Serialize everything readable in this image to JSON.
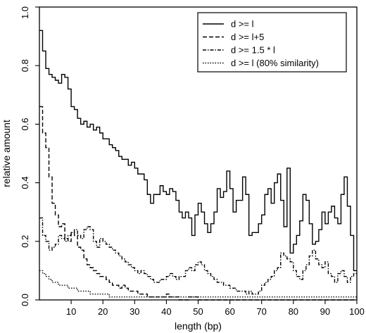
{
  "chart_data": {
    "type": "line",
    "step": true,
    "title": "",
    "xlabel": "length (bp)",
    "ylabel": "relative amount",
    "xlim": [
      0,
      100
    ],
    "ylim": [
      0,
      1.0
    ],
    "xticks": [
      10,
      20,
      30,
      40,
      50,
      60,
      70,
      80,
      90,
      100
    ],
    "yticks": [
      0.0,
      0.2,
      0.4,
      0.6,
      0.8,
      1.0
    ],
    "xtick_labels": [
      "10",
      "20",
      "30",
      "40",
      "50",
      "60",
      "70",
      "80",
      "90",
      "100"
    ],
    "ytick_labels": [
      "0.0",
      "0.2",
      "0.4",
      "0.6",
      "0.8",
      "1.0"
    ],
    "legend_position": "top-right",
    "series": [
      {
        "name": "d >= l",
        "dash": "solid",
        "x": [
          1,
          2,
          3,
          4,
          5,
          6,
          7,
          8,
          9,
          10,
          11,
          12,
          13,
          14,
          15,
          16,
          17,
          18,
          19,
          20,
          21,
          22,
          23,
          24,
          25,
          26,
          27,
          28,
          29,
          30,
          31,
          32,
          33,
          34,
          35,
          36,
          37,
          38,
          39,
          40,
          41,
          42,
          43,
          44,
          45,
          46,
          47,
          48,
          49,
          50,
          51,
          52,
          53,
          54,
          55,
          56,
          57,
          58,
          59,
          60,
          61,
          62,
          63,
          64,
          65,
          66,
          67,
          68,
          69,
          70,
          71,
          72,
          73,
          74,
          75,
          76,
          77,
          78,
          79,
          80,
          81,
          82,
          83,
          84,
          85,
          86,
          87,
          88,
          89,
          90,
          91,
          92,
          93,
          94,
          95,
          96,
          97,
          98,
          99,
          100
        ],
        "y": [
          0.92,
          0.85,
          0.79,
          0.77,
          0.76,
          0.75,
          0.74,
          0.77,
          0.76,
          0.72,
          0.66,
          0.65,
          0.62,
          0.6,
          0.61,
          0.59,
          0.6,
          0.58,
          0.59,
          0.57,
          0.55,
          0.55,
          0.53,
          0.52,
          0.51,
          0.49,
          0.48,
          0.48,
          0.46,
          0.47,
          0.45,
          0.43,
          0.43,
          0.41,
          0.36,
          0.33,
          0.36,
          0.36,
          0.39,
          0.37,
          0.36,
          0.38,
          0.37,
          0.34,
          0.3,
          0.28,
          0.3,
          0.28,
          0.22,
          0.29,
          0.33,
          0.3,
          0.26,
          0.23,
          0.26,
          0.3,
          0.38,
          0.35,
          0.37,
          0.44,
          0.38,
          0.3,
          0.34,
          0.34,
          0.42,
          0.36,
          0.22,
          0.23,
          0.23,
          0.26,
          0.29,
          0.36,
          0.38,
          0.33,
          0.4,
          0.43,
          0.34,
          0.25,
          0.45,
          0.16,
          0.19,
          0.22,
          0.27,
          0.36,
          0.34,
          0.26,
          0.19,
          0.2,
          0.24,
          0.3,
          0.26,
          0.3,
          0.32,
          0.28,
          0.26,
          0.36,
          0.42,
          0.32,
          0.22,
          0.1
        ]
      },
      {
        "name": "d >= l+5",
        "dash": "dashed",
        "x": [
          1,
          2,
          3,
          4,
          5,
          6,
          7,
          8,
          9,
          10,
          11,
          12,
          13,
          14,
          15,
          16,
          17,
          18,
          19,
          20,
          21,
          22,
          23,
          24,
          25,
          26,
          27,
          28,
          29,
          30,
          31,
          32,
          33,
          34,
          35,
          36,
          37,
          38,
          39,
          40,
          41,
          42,
          43,
          44,
          45,
          46,
          47,
          48,
          49,
          50,
          51,
          52,
          53,
          54,
          55,
          56,
          57,
          58,
          59,
          60,
          61,
          62,
          63,
          64,
          65,
          66,
          67,
          68,
          69,
          70,
          71,
          72,
          73,
          74,
          75,
          76,
          77,
          78,
          79,
          80,
          81,
          82,
          83,
          84,
          85,
          86,
          87,
          88,
          89,
          90,
          91,
          92,
          93,
          94,
          95,
          96,
          97,
          98,
          99,
          100
        ],
        "y": [
          0.66,
          0.57,
          0.52,
          0.42,
          0.33,
          0.29,
          0.25,
          0.26,
          0.21,
          0.2,
          0.23,
          0.22,
          0.18,
          0.17,
          0.14,
          0.12,
          0.11,
          0.1,
          0.09,
          0.08,
          0.08,
          0.07,
          0.06,
          0.05,
          0.05,
          0.04,
          0.05,
          0.04,
          0.03,
          0.03,
          0.03,
          0.02,
          0.02,
          0.02,
          0.01,
          0.01,
          0.01,
          0.01,
          0.01,
          0.01,
          0.02,
          0.01,
          0.01,
          0.01,
          0.0,
          0.0,
          0.0,
          0.01,
          0.01,
          0.01,
          0.0,
          0.0,
          0.0,
          0.0,
          0.0,
          0.0,
          0.0,
          0.0,
          0.0,
          0.0,
          0.0,
          0.0,
          0.0,
          0.0,
          0.0,
          0.0,
          0.0,
          0.0,
          0.0,
          0.0,
          0.0,
          0.0,
          0.0,
          0.0,
          0.0,
          0.0,
          0.0,
          0.0,
          0.0,
          0.0,
          0.0,
          0.0,
          0.0,
          0.0,
          0.0,
          0.0,
          0.0,
          0.0,
          0.0,
          0.0,
          0.0,
          0.0,
          0.0,
          0.0,
          0.0,
          0.0,
          0.0,
          0.0,
          0.0,
          0.0
        ]
      },
      {
        "name": "d >= 1.5 * l",
        "dash": "dashdot",
        "x": [
          1,
          2,
          3,
          4,
          5,
          6,
          7,
          8,
          9,
          10,
          11,
          12,
          13,
          14,
          15,
          16,
          17,
          18,
          19,
          20,
          21,
          22,
          23,
          24,
          25,
          26,
          27,
          28,
          29,
          30,
          31,
          32,
          33,
          34,
          35,
          36,
          37,
          38,
          39,
          40,
          41,
          42,
          43,
          44,
          45,
          46,
          47,
          48,
          49,
          50,
          51,
          52,
          53,
          54,
          55,
          56,
          57,
          58,
          59,
          60,
          61,
          62,
          63,
          64,
          65,
          66,
          67,
          68,
          69,
          70,
          71,
          72,
          73,
          74,
          75,
          76,
          77,
          78,
          79,
          80,
          81,
          82,
          83,
          84,
          85,
          86,
          87,
          88,
          89,
          90,
          91,
          92,
          93,
          94,
          95,
          96,
          97,
          98,
          99,
          100
        ],
        "y": [
          0.28,
          0.22,
          0.2,
          0.17,
          0.18,
          0.19,
          0.22,
          0.21,
          0.2,
          0.22,
          0.23,
          0.24,
          0.22,
          0.21,
          0.24,
          0.25,
          0.24,
          0.2,
          0.18,
          0.21,
          0.2,
          0.19,
          0.18,
          0.17,
          0.16,
          0.15,
          0.14,
          0.13,
          0.12,
          0.11,
          0.1,
          0.09,
          0.1,
          0.09,
          0.08,
          0.07,
          0.06,
          0.06,
          0.07,
          0.07,
          0.08,
          0.09,
          0.08,
          0.07,
          0.08,
          0.08,
          0.1,
          0.11,
          0.1,
          0.12,
          0.13,
          0.12,
          0.1,
          0.09,
          0.08,
          0.07,
          0.06,
          0.06,
          0.05,
          0.05,
          0.04,
          0.04,
          0.03,
          0.03,
          0.03,
          0.02,
          0.03,
          0.02,
          0.02,
          0.03,
          0.05,
          0.06,
          0.07,
          0.08,
          0.1,
          0.11,
          0.16,
          0.15,
          0.14,
          0.13,
          0.1,
          0.08,
          0.07,
          0.1,
          0.12,
          0.15,
          0.17,
          0.14,
          0.12,
          0.11,
          0.13,
          0.09,
          0.08,
          0.06,
          0.09,
          0.1,
          0.08,
          0.06,
          0.08,
          0.09
        ]
      },
      {
        "name": "d >= l  (80% similarity)",
        "dash": "dotted",
        "x": [
          1,
          2,
          3,
          4,
          5,
          6,
          7,
          8,
          9,
          10,
          11,
          12,
          13,
          14,
          15,
          16,
          17,
          18,
          19,
          20,
          21,
          22,
          23,
          24,
          25,
          26,
          27,
          28,
          29,
          30,
          31,
          32,
          33,
          34,
          35,
          36,
          37,
          38,
          39,
          40,
          41,
          42,
          43,
          44,
          45,
          46,
          47,
          48,
          49,
          50,
          51,
          52,
          53,
          54,
          55,
          56,
          57,
          58,
          59,
          60,
          61,
          62,
          63,
          64,
          65,
          66,
          67,
          68,
          69,
          70,
          71,
          72,
          73,
          74,
          75,
          76,
          77,
          78,
          79,
          80,
          81,
          82,
          83,
          84,
          85,
          86,
          87,
          88,
          89,
          90,
          91,
          92,
          93,
          94,
          95,
          96,
          97,
          98,
          99,
          100
        ],
        "y": [
          0.1,
          0.09,
          0.08,
          0.07,
          0.06,
          0.06,
          0.05,
          0.05,
          0.05,
          0.04,
          0.04,
          0.04,
          0.03,
          0.03,
          0.03,
          0.03,
          0.02,
          0.02,
          0.02,
          0.02,
          0.02,
          0.02,
          0.01,
          0.01,
          0.01,
          0.01,
          0.01,
          0.01,
          0.01,
          0.01,
          0.01,
          0.01,
          0.01,
          0.01,
          0.01,
          0.01,
          0.01,
          0.01,
          0.01,
          0.01,
          0.01,
          0.01,
          0.01,
          0.01,
          0.01,
          0.01,
          0.01,
          0.01,
          0.01,
          0.01,
          0.01,
          0.01,
          0.01,
          0.01,
          0.01,
          0.01,
          0.01,
          0.01,
          0.01,
          0.01,
          0.01,
          0.01,
          0.01,
          0.01,
          0.01,
          0.01,
          0.01,
          0.01,
          0.01,
          0.01,
          0.01,
          0.01,
          0.01,
          0.01,
          0.01,
          0.01,
          0.01,
          0.01,
          0.01,
          0.01,
          0.01,
          0.01,
          0.01,
          0.01,
          0.01,
          0.01,
          0.01,
          0.01,
          0.01,
          0.01,
          0.01,
          0.01,
          0.01,
          0.01,
          0.01,
          0.01,
          0.01,
          0.01,
          0.01,
          0.01
        ]
      }
    ]
  }
}
